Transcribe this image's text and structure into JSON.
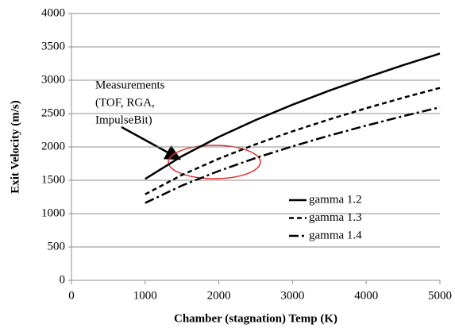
{
  "chart_data": {
    "type": "line",
    "x_label": "Chamber (stagnation) Temp (K)",
    "y_label": "Exit Velocity (m/s)",
    "x": [
      1000,
      1500,
      2000,
      2500,
      3000,
      3500,
      4000,
      4500,
      5000
    ],
    "series": [
      {
        "name": "gamma 1.2",
        "color": "#000000",
        "dash": "solid",
        "values": [
          1520,
          1862,
          2150,
          2403,
          2633,
          2844,
          3040,
          3225,
          3399
        ]
      },
      {
        "name": "gamma 1.3",
        "color": "#000000",
        "dash": "dashed",
        "values": [
          1290,
          1580,
          1824,
          2040,
          2234,
          2413,
          2580,
          2737,
          2885
        ]
      },
      {
        "name": "gamma 1.4",
        "color": "#000000",
        "dash": "dashdot",
        "values": [
          1160,
          1421,
          1640,
          1834,
          2009,
          2170,
          2320,
          2461,
          2594
        ]
      }
    ],
    "xlim": [
      0,
      5000
    ],
    "xticks": [
      0,
      1000,
      2000,
      3000,
      4000,
      5000
    ],
    "ylim": [
      0,
      4000
    ],
    "yticks": [
      0,
      500,
      1000,
      1500,
      2000,
      2500,
      3000,
      3500,
      4000
    ],
    "grid": true,
    "legend": "right",
    "annotation": [
      "Measurements",
      "(TOF, RGA,",
      "ImpulseBit)"
    ]
  }
}
